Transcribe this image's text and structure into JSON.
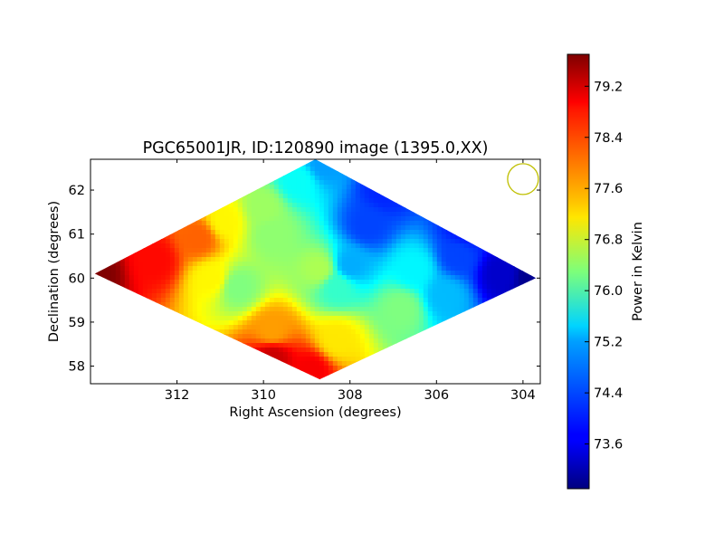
{
  "chart_data": {
    "type": "heatmap",
    "title": "PGC65001JR, ID:120890 image (1395.0,XX)",
    "xlabel": "Right Ascension (degrees)",
    "ylabel": "Declination (degrees)",
    "xlim": [
      314.0,
      303.6
    ],
    "ylim": [
      57.6,
      62.7
    ],
    "x_ticks": [
      312,
      310,
      308,
      306,
      304
    ],
    "y_ticks": [
      58,
      59,
      60,
      61,
      62
    ],
    "colorbar": {
      "label": "Power in Kelvin",
      "colormap": "jet",
      "range": [
        72.9,
        79.7
      ],
      "ticks": [
        73.6,
        74.4,
        75.2,
        76.0,
        76.8,
        77.6,
        78.4,
        79.2
      ],
      "tick_labels": [
        "73.6",
        "74.4",
        "75.2",
        "76.0",
        "76.8",
        "77.6",
        "78.4",
        "79.2"
      ]
    },
    "footprint_corners": [
      {
        "ra": 313.9,
        "dec": 60.1
      },
      {
        "ra": 308.8,
        "dec": 62.7
      },
      {
        "ra": 303.7,
        "dec": 60.0
      },
      {
        "ra": 308.7,
        "dec": 57.7
      }
    ],
    "values": [
      {
        "ra": 313.9,
        "dec": 60.1,
        "power": 79.7
      },
      {
        "ra": 312.5,
        "dec": 60.4,
        "power": 78.8
      },
      {
        "ra": 311.5,
        "dec": 60.9,
        "power": 78.2
      },
      {
        "ra": 311.2,
        "dec": 60.0,
        "power": 77.2
      },
      {
        "ra": 310.6,
        "dec": 59.8,
        "power": 76.3
      },
      {
        "ra": 310.9,
        "dec": 61.3,
        "power": 77.2
      },
      {
        "ra": 310.0,
        "dec": 61.6,
        "power": 76.5
      },
      {
        "ra": 309.8,
        "dec": 61.0,
        "power": 76.4
      },
      {
        "ra": 309.2,
        "dec": 62.2,
        "power": 75.5
      },
      {
        "ra": 308.6,
        "dec": 62.6,
        "power": 74.8
      },
      {
        "ra": 309.8,
        "dec": 58.8,
        "power": 77.8
      },
      {
        "ra": 309.8,
        "dec": 58.2,
        "power": 79.2
      },
      {
        "ra": 308.9,
        "dec": 57.9,
        "power": 78.9
      },
      {
        "ra": 308.3,
        "dec": 58.6,
        "power": 77.3
      },
      {
        "ra": 308.7,
        "dec": 60.2,
        "power": 76.6
      },
      {
        "ra": 308.0,
        "dec": 60.3,
        "power": 74.9
      },
      {
        "ra": 308.3,
        "dec": 59.8,
        "power": 75.8
      },
      {
        "ra": 307.6,
        "dec": 61.2,
        "power": 74.2
      },
      {
        "ra": 307.2,
        "dec": 62.0,
        "power": 74.0
      },
      {
        "ra": 306.5,
        "dec": 60.2,
        "power": 75.4
      },
      {
        "ra": 306.8,
        "dec": 59.3,
        "power": 76.3
      },
      {
        "ra": 305.5,
        "dec": 60.5,
        "power": 74.2
      },
      {
        "ra": 305.3,
        "dec": 61.1,
        "power": 73.9
      },
      {
        "ra": 304.5,
        "dec": 60.1,
        "power": 73.4
      },
      {
        "ra": 303.8,
        "dec": 60.0,
        "power": 73.0
      },
      {
        "ra": 305.8,
        "dec": 59.6,
        "power": 75.0
      }
    ],
    "beam_marker": {
      "ra": 304.0,
      "dec": 62.25,
      "color": "#bfbf00"
    },
    "grid": false
  }
}
